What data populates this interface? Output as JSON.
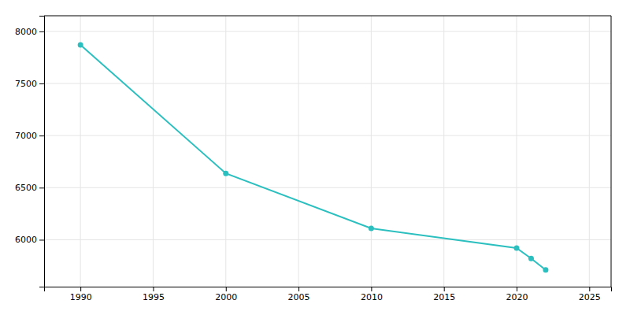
{
  "chart_data": {
    "type": "line",
    "x": [
      1990,
      2000,
      2010,
      2020,
      2021,
      2022
    ],
    "values": [
      7870,
      6637,
      6110,
      5920,
      5820,
      5710
    ],
    "color": "#2bbfbf",
    "marker": "circle",
    "xlim": [
      1987.5,
      2026.5
    ],
    "ylim": [
      5550,
      8150
    ],
    "xticks": [
      1990,
      1995,
      2000,
      2005,
      2010,
      2015,
      2020,
      2025
    ],
    "yticks": [
      6000,
      6500,
      7000,
      7500,
      8000
    ],
    "grid": true
  }
}
